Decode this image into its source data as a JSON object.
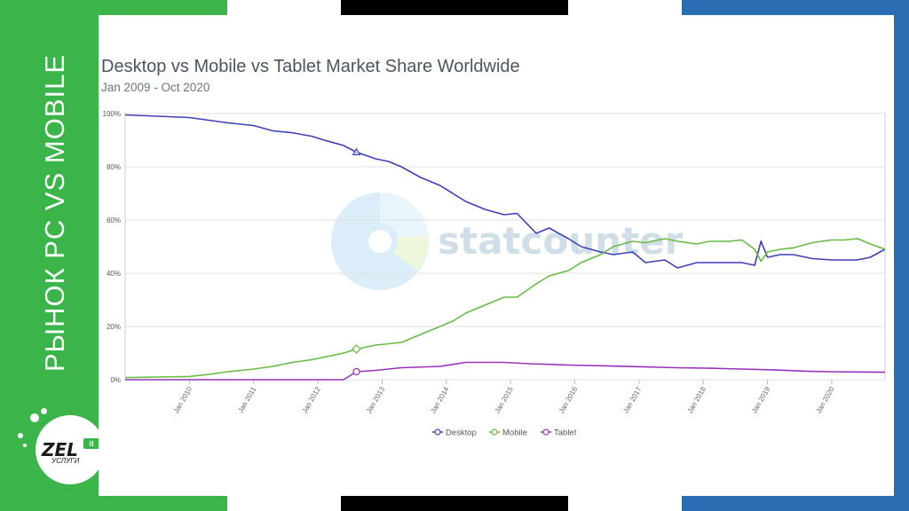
{
  "side_label": "РЫНОК PC VS MOBILE",
  "logo": {
    "brand": "ZEL",
    "badge": "it",
    "sub": "УСЛУГИ"
  },
  "watermark": "statcounter",
  "colors": {
    "green": "#3bb54a",
    "blue": "#2a6db3",
    "desktop": "#3f3fb8",
    "mobile": "#66bb44",
    "tablet": "#9933bb",
    "title": "#4a5560",
    "grid": "#e2e2e2"
  },
  "chart_data": {
    "type": "line",
    "title": "Desktop vs Mobile vs Tablet Market Share Worldwide",
    "subtitle": "Jan 2009 - Oct 2020",
    "ylim": [
      0,
      100
    ],
    "y_ticks": [
      "0%",
      "20%",
      "40%",
      "60%",
      "80%",
      "100%"
    ],
    "y_tick_values": [
      0,
      20,
      40,
      60,
      80,
      100
    ],
    "xlim": [
      2009.0,
      2020.83
    ],
    "x_tick_labels": [
      "Jan 2010",
      "Jan 2011",
      "Jan 2012",
      "Jan 2013",
      "Jan 2014",
      "Jan 2015",
      "Jan 2016",
      "Jan 2017",
      "Jan 2018",
      "Jan 2019",
      "Jan 2020"
    ],
    "x_tick_values": [
      2010,
      2011,
      2012,
      2013,
      2014,
      2015,
      2016,
      2017,
      2018,
      2019,
      2020
    ],
    "legend": [
      "Desktop",
      "Mobile",
      "Tablet"
    ],
    "legend_position": "bottom",
    "series": [
      {
        "name": "Desktop",
        "x": [
          2009.0,
          2009.5,
          2010.0,
          2010.3,
          2010.6,
          2011.0,
          2011.3,
          2011.6,
          2011.9,
          2012.1,
          2012.4,
          2012.6,
          2012.9,
          2013.1,
          2013.3,
          2013.6,
          2013.9,
          2014.1,
          2014.3,
          2014.6,
          2014.9,
          2015.1,
          2015.4,
          2015.6,
          2015.9,
          2016.1,
          2016.4,
          2016.6,
          2016.9,
          2017.1,
          2017.4,
          2017.6,
          2017.9,
          2018.1,
          2018.4,
          2018.6,
          2018.8,
          2018.9,
          2019.0,
          2019.2,
          2019.4,
          2019.7,
          2020.0,
          2020.2,
          2020.4,
          2020.6,
          2020.83
        ],
        "y": [
          99.5,
          99,
          98.5,
          97.5,
          96.5,
          95.5,
          93.5,
          92.8,
          91.5,
          90,
          88,
          85.5,
          83,
          82,
          80,
          76,
          73,
          70,
          67,
          64,
          62,
          62.5,
          55,
          57,
          53,
          50,
          48,
          47,
          48,
          44,
          45,
          42,
          44,
          44,
          44,
          44,
          43,
          52,
          46,
          47,
          47,
          45.5,
          45,
          45,
          45,
          46,
          49
        ]
      },
      {
        "name": "Mobile",
        "x": [
          2009.0,
          2009.5,
          2010.0,
          2010.3,
          2010.6,
          2011.0,
          2011.3,
          2011.6,
          2011.9,
          2012.1,
          2012.4,
          2012.6,
          2012.9,
          2013.1,
          2013.3,
          2013.6,
          2013.9,
          2014.1,
          2014.3,
          2014.6,
          2014.9,
          2015.1,
          2015.4,
          2015.6,
          2015.9,
          2016.1,
          2016.4,
          2016.6,
          2016.9,
          2017.1,
          2017.4,
          2017.6,
          2017.9,
          2018.1,
          2018.4,
          2018.6,
          2018.8,
          2018.9,
          2019.0,
          2019.2,
          2019.4,
          2019.7,
          2020.0,
          2020.2,
          2020.4,
          2020.6,
          2020.83
        ],
        "y": [
          0.8,
          1,
          1.2,
          2,
          3,
          4,
          5,
          6.5,
          7.5,
          8.5,
          10,
          11.5,
          13,
          13.5,
          14,
          17,
          20,
          22,
          25,
          28,
          31,
          31,
          36,
          39,
          41,
          44,
          47,
          50,
          52,
          51.5,
          53,
          52,
          51,
          52,
          52,
          52.5,
          49,
          44.5,
          48,
          49,
          49.5,
          51.5,
          52.5,
          52.5,
          53,
          51,
          49
        ]
      },
      {
        "name": "Tablet",
        "x": [
          2009.0,
          2012.0,
          2012.4,
          2012.6,
          2012.9,
          2013.3,
          2013.9,
          2014.3,
          2014.9,
          2015.3,
          2015.9,
          2016.5,
          2017.1,
          2017.6,
          2018.1,
          2018.6,
          2019.1,
          2019.6,
          2020.0,
          2020.4,
          2020.83
        ],
        "y": [
          0,
          0,
          0,
          3,
          3.5,
          4.5,
          5,
          6.5,
          6.5,
          6,
          5.5,
          5.2,
          4.8,
          4.5,
          4.3,
          4,
          3.7,
          3.2,
          3,
          2.9,
          2.8
        ]
      }
    ],
    "highlight_points": [
      {
        "series": "Desktop",
        "x": 2012.6,
        "y": 85.5,
        "shape": "triangle"
      },
      {
        "series": "Mobile",
        "x": 2012.6,
        "y": 11.5,
        "shape": "diamond"
      },
      {
        "series": "Tablet",
        "x": 2012.6,
        "y": 3,
        "shape": "circle"
      }
    ]
  }
}
